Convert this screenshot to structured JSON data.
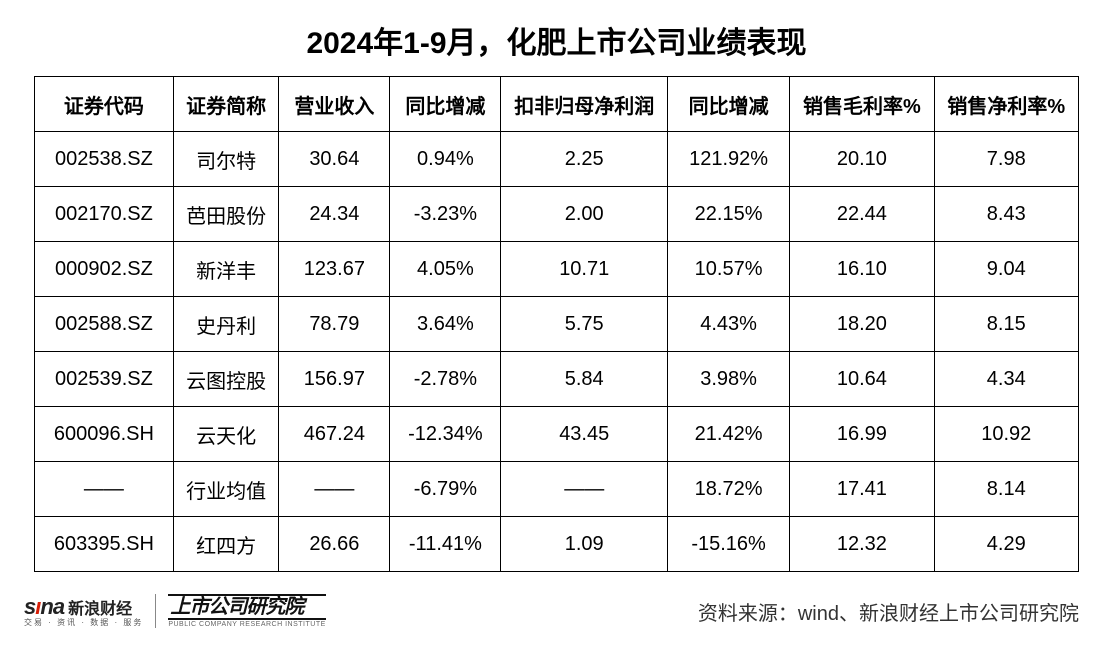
{
  "title": "2024年1-9月，化肥上市公司业绩表现",
  "columns": [
    "证券代码",
    "证券简称",
    "营业收入",
    "同比增减",
    "扣非归母净利润",
    "同比增减",
    "销售毛利率%",
    "销售净利率%"
  ],
  "rows": [
    [
      "002538.SZ",
      "司尔特",
      "30.64",
      "0.94%",
      "2.25",
      "121.92%",
      "20.10",
      "7.98"
    ],
    [
      "002170.SZ",
      "芭田股份",
      "24.34",
      "-3.23%",
      "2.00",
      "22.15%",
      "22.44",
      "8.43"
    ],
    [
      "000902.SZ",
      "新洋丰",
      "123.67",
      "4.05%",
      "10.71",
      "10.57%",
      "16.10",
      "9.04"
    ],
    [
      "002588.SZ",
      "史丹利",
      "78.79",
      "3.64%",
      "5.75",
      "4.43%",
      "18.20",
      "8.15"
    ],
    [
      "002539.SZ",
      "云图控股",
      "156.97",
      "-2.78%",
      "5.84",
      "3.98%",
      "10.64",
      "4.34"
    ],
    [
      "600096.SH",
      "云天化",
      "467.24",
      "-12.34%",
      "43.45",
      "21.42%",
      "16.99",
      "10.92"
    ],
    [
      "——",
      "行业均值",
      "——",
      "-6.79%",
      "——",
      "18.72%",
      "17.41",
      "8.14"
    ],
    [
      "603395.SH",
      "红四方",
      "26.66",
      "-11.41%",
      "1.09",
      "-15.16%",
      "12.32",
      "4.29"
    ]
  ],
  "footer": {
    "sina_brand_latin": "sina",
    "sina_brand_cn": "新浪财经",
    "sina_sub": "交易 · 资讯 · 数据 · 服务",
    "institute_cn": "上市公司研究院",
    "institute_en": "PUBLIC COMPANY RESEARCH INSTITUTE",
    "source": "资料来源：wind、新浪财经上市公司研究院"
  },
  "colors": {
    "text": "#000000",
    "border": "#000000",
    "background": "#ffffff",
    "sina_accent": "#d81e06"
  }
}
